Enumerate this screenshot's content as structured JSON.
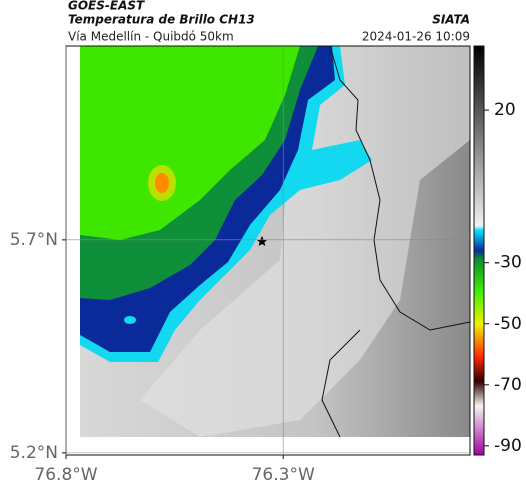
{
  "header": {
    "product": "GOES-EAST",
    "title": "Temperatura de Brillo CH13",
    "subtitle": "Vía Medellín - Quibdó 50km",
    "source": "SIATA",
    "timestamp": "2024-01-26 10:09"
  },
  "map": {
    "xlim": [
      -76.8,
      -75.87
    ],
    "ylim": [
      5.195,
      6.155
    ],
    "xticks": [
      {
        "value": -76.8,
        "label": "76.8°W"
      },
      {
        "value": -76.3,
        "label": "76.3°W"
      }
    ],
    "yticks": [
      {
        "value": 5.7,
        "label": "5.7°N"
      },
      {
        "value": 5.2,
        "label": "5.2°N"
      }
    ],
    "grid": true
  },
  "colorbar": {
    "lim": [
      41,
      -93
    ],
    "ticks": [
      20,
      -30,
      -50,
      -70,
      -90
    ]
  }
}
